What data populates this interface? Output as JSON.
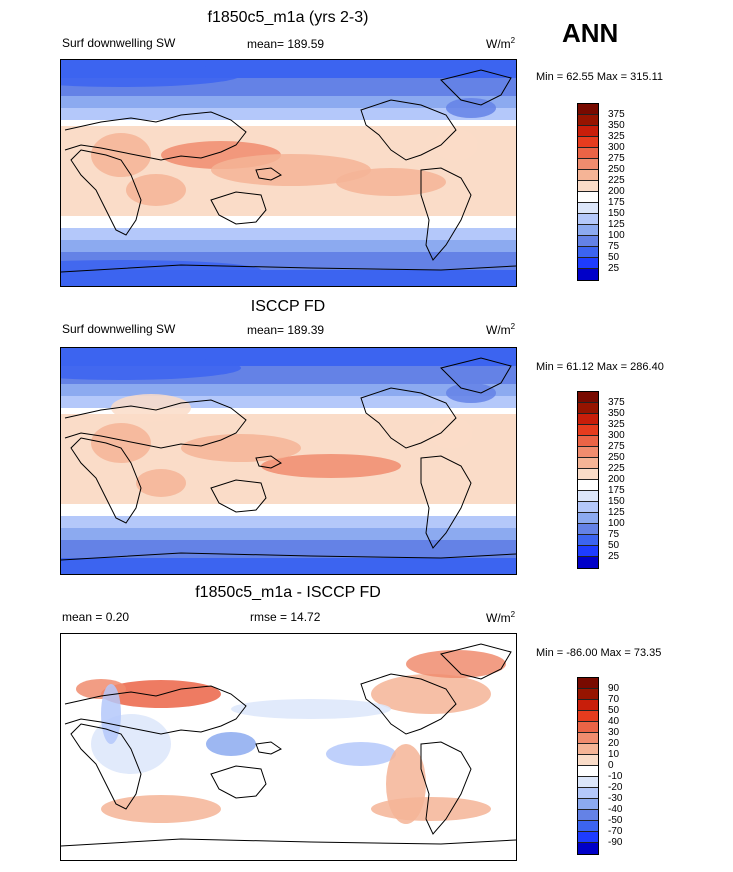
{
  "season": "ANN",
  "colors": {
    "scale": [
      "#000080",
      "#0000c8",
      "#1e3cff",
      "#3c64f0",
      "#6482e6",
      "#8caaf0",
      "#b4c8fa",
      "#dce6fa",
      "#ffffff",
      "#fadcc8",
      "#f5b496",
      "#f08c6e",
      "#eb6446",
      "#e63c1e",
      "#c81e0a",
      "#961400",
      "#780a00"
    ]
  },
  "panels": [
    {
      "title": "f1850c5_m1a (yrs 2-3)",
      "left": "Surf downwelling SW",
      "center": "mean= 189.59",
      "units": "W/m",
      "units_sup": "2",
      "minmax": "Min =  62.55 Max = 315.11",
      "ticks": [
        "375",
        "350",
        "325",
        "300",
        "275",
        "250",
        "225",
        "200",
        "175",
        "150",
        "125",
        "100",
        "75",
        "50",
        "25"
      ],
      "field": "model"
    },
    {
      "title": "ISCCP FD",
      "left": "Surf downwelling SW",
      "center": "mean= 189.39",
      "units": "W/m",
      "units_sup": "2",
      "minmax": "Min =  61.12 Max = 286.40",
      "ticks": [
        "375",
        "350",
        "325",
        "300",
        "275",
        "250",
        "225",
        "200",
        "175",
        "150",
        "125",
        "100",
        "75",
        "50",
        "25"
      ],
      "field": "obs"
    },
    {
      "title": "f1850c5_m1a - ISCCP FD",
      "left": "mean =   0.20",
      "center": "rmse =  14.72",
      "units": "W/m",
      "units_sup": "2",
      "minmax": "Min = -86.00 Max =  73.35",
      "ticks": [
        "90",
        "70",
        "50",
        "40",
        "30",
        "20",
        "10",
        "0",
        "-10",
        "-20",
        "-30",
        "-40",
        "-50",
        "-70",
        "-90"
      ],
      "field": "diff"
    }
  ]
}
